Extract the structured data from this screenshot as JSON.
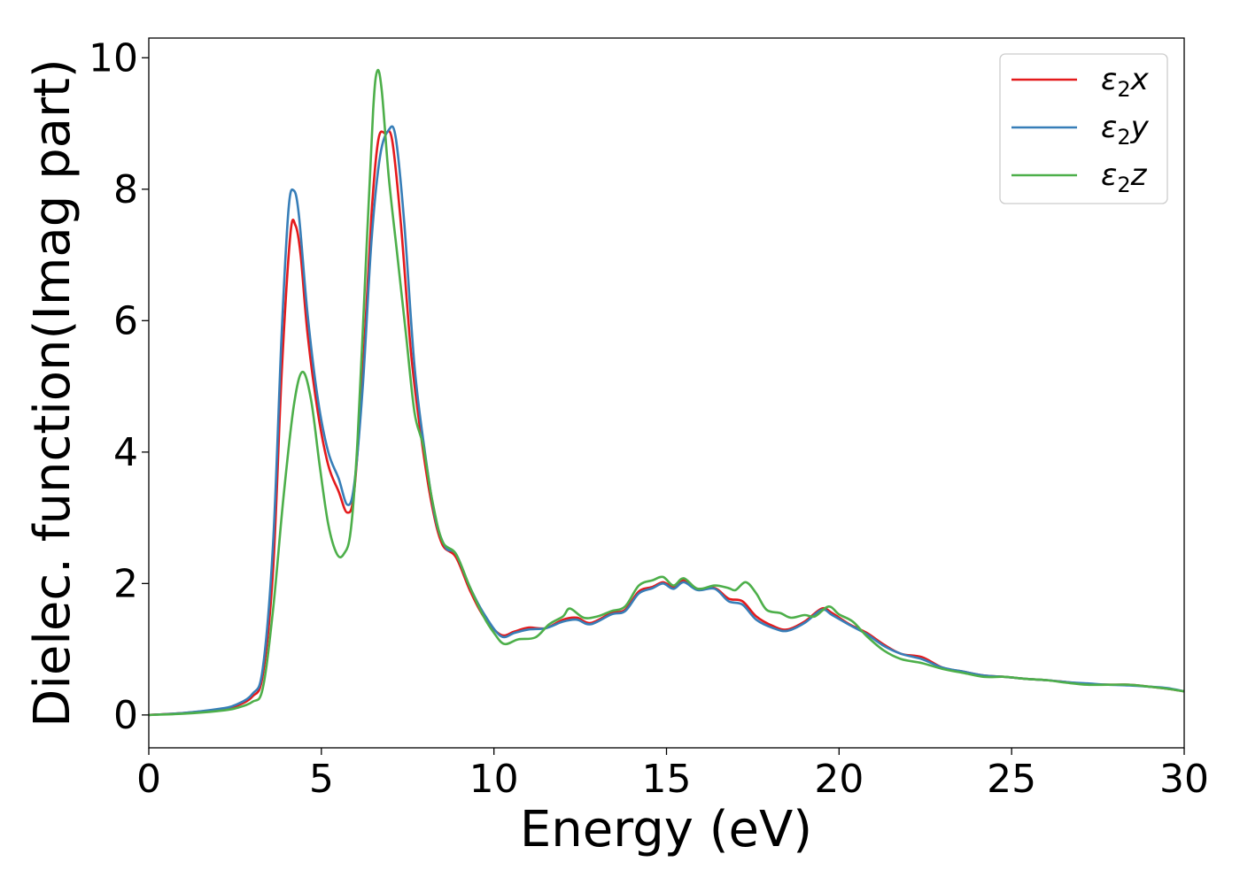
{
  "chart_data": {
    "type": "line",
    "title": "",
    "xlabel": "Energy (eV)",
    "ylabel": "Dielec. function(Imag part)",
    "xlim": [
      0,
      30
    ],
    "ylim": [
      -0.5,
      10.3
    ],
    "grid": false,
    "legend_position": "top-right",
    "x_ticks": [
      0,
      5,
      10,
      15,
      20,
      25,
      30
    ],
    "x_tick_labels": [
      "0",
      "5",
      "10",
      "15",
      "20",
      "25",
      "30"
    ],
    "y_ticks": [
      0,
      2,
      4,
      6,
      8,
      10
    ],
    "y_tick_labels": [
      "0",
      "2",
      "4",
      "6",
      "8",
      "10"
    ],
    "series": [
      {
        "name": "ε2x",
        "legend_base": "ε",
        "legend_sub": "2",
        "legend_suffix": "x",
        "color": "#e41a1c",
        "points": [
          [
            0,
            0.0
          ],
          [
            1,
            0.03
          ],
          [
            2,
            0.08
          ],
          [
            2.5,
            0.13
          ],
          [
            3,
            0.28
          ],
          [
            3.3,
            0.6
          ],
          [
            3.6,
            2.2
          ],
          [
            3.85,
            5.2
          ],
          [
            4.1,
            7.3
          ],
          [
            4.25,
            7.45
          ],
          [
            4.4,
            7.0
          ],
          [
            4.6,
            5.8
          ],
          [
            4.9,
            4.6
          ],
          [
            5.2,
            3.8
          ],
          [
            5.5,
            3.4
          ],
          [
            5.75,
            3.08
          ],
          [
            5.95,
            3.4
          ],
          [
            6.2,
            5.2
          ],
          [
            6.45,
            7.6
          ],
          [
            6.65,
            8.75
          ],
          [
            6.85,
            8.85
          ],
          [
            7.05,
            8.75
          ],
          [
            7.3,
            7.5
          ],
          [
            7.6,
            5.5
          ],
          [
            7.9,
            4.2
          ],
          [
            8.2,
            3.2
          ],
          [
            8.5,
            2.6
          ],
          [
            8.9,
            2.4
          ],
          [
            9.3,
            1.9
          ],
          [
            9.7,
            1.5
          ],
          [
            10.2,
            1.22
          ],
          [
            10.6,
            1.27
          ],
          [
            11,
            1.33
          ],
          [
            11.5,
            1.32
          ],
          [
            12,
            1.45
          ],
          [
            12.4,
            1.48
          ],
          [
            12.8,
            1.4
          ],
          [
            13.4,
            1.55
          ],
          [
            13.8,
            1.6
          ],
          [
            14.2,
            1.88
          ],
          [
            14.6,
            1.95
          ],
          [
            14.9,
            2.02
          ],
          [
            15.2,
            1.95
          ],
          [
            15.5,
            2.05
          ],
          [
            15.9,
            1.92
          ],
          [
            16.4,
            1.93
          ],
          [
            16.8,
            1.77
          ],
          [
            17.2,
            1.73
          ],
          [
            17.6,
            1.5
          ],
          [
            18.1,
            1.35
          ],
          [
            18.5,
            1.3
          ],
          [
            19,
            1.42
          ],
          [
            19.5,
            1.62
          ],
          [
            19.8,
            1.55
          ],
          [
            20.3,
            1.38
          ],
          [
            20.8,
            1.25
          ],
          [
            21.3,
            1.07
          ],
          [
            21.8,
            0.93
          ],
          [
            22.4,
            0.88
          ],
          [
            23,
            0.72
          ],
          [
            23.6,
            0.66
          ],
          [
            24.2,
            0.6
          ],
          [
            24.8,
            0.58
          ],
          [
            25.4,
            0.55
          ],
          [
            26,
            0.53
          ],
          [
            26.6,
            0.5
          ],
          [
            27.2,
            0.47
          ],
          [
            27.8,
            0.46
          ],
          [
            28.4,
            0.46
          ],
          [
            29,
            0.43
          ],
          [
            29.5,
            0.4
          ],
          [
            30,
            0.36
          ]
        ]
      },
      {
        "name": "ε2y",
        "legend_base": "ε",
        "legend_sub": "2",
        "legend_suffix": "y",
        "color": "#377eb8",
        "points": [
          [
            0,
            0.0
          ],
          [
            1,
            0.03
          ],
          [
            2,
            0.09
          ],
          [
            2.5,
            0.15
          ],
          [
            3,
            0.32
          ],
          [
            3.3,
            0.7
          ],
          [
            3.6,
            2.6
          ],
          [
            3.85,
            5.8
          ],
          [
            4.05,
            7.7
          ],
          [
            4.2,
            7.98
          ],
          [
            4.35,
            7.6
          ],
          [
            4.6,
            6.1
          ],
          [
            4.9,
            4.8
          ],
          [
            5.2,
            4.0
          ],
          [
            5.5,
            3.6
          ],
          [
            5.75,
            3.2
          ],
          [
            5.95,
            3.5
          ],
          [
            6.2,
            5.0
          ],
          [
            6.45,
            7.2
          ],
          [
            6.7,
            8.5
          ],
          [
            6.95,
            8.9
          ],
          [
            7.15,
            8.8
          ],
          [
            7.4,
            7.5
          ],
          [
            7.7,
            5.3
          ],
          [
            8.0,
            4.0
          ],
          [
            8.3,
            3.0
          ],
          [
            8.6,
            2.55
          ],
          [
            8.9,
            2.45
          ],
          [
            9.3,
            1.95
          ],
          [
            9.7,
            1.55
          ],
          [
            10.2,
            1.2
          ],
          [
            10.6,
            1.25
          ],
          [
            11,
            1.3
          ],
          [
            11.5,
            1.32
          ],
          [
            12,
            1.42
          ],
          [
            12.4,
            1.45
          ],
          [
            12.8,
            1.38
          ],
          [
            13.4,
            1.53
          ],
          [
            13.8,
            1.58
          ],
          [
            14.2,
            1.85
          ],
          [
            14.6,
            1.93
          ],
          [
            14.9,
            2.0
          ],
          [
            15.2,
            1.92
          ],
          [
            15.5,
            2.02
          ],
          [
            15.9,
            1.9
          ],
          [
            16.4,
            1.92
          ],
          [
            16.8,
            1.73
          ],
          [
            17.2,
            1.68
          ],
          [
            17.6,
            1.45
          ],
          [
            18.1,
            1.32
          ],
          [
            18.5,
            1.28
          ],
          [
            19,
            1.4
          ],
          [
            19.5,
            1.6
          ],
          [
            19.8,
            1.52
          ],
          [
            20.3,
            1.37
          ],
          [
            20.8,
            1.23
          ],
          [
            21.3,
            1.05
          ],
          [
            21.8,
            0.93
          ],
          [
            22.4,
            0.85
          ],
          [
            23,
            0.72
          ],
          [
            23.6,
            0.66
          ],
          [
            24.2,
            0.6
          ],
          [
            24.8,
            0.58
          ],
          [
            25.4,
            0.55
          ],
          [
            26,
            0.53
          ],
          [
            26.6,
            0.5
          ],
          [
            27.2,
            0.48
          ],
          [
            27.8,
            0.46
          ],
          [
            28.4,
            0.45
          ],
          [
            29,
            0.43
          ],
          [
            29.5,
            0.41
          ],
          [
            30,
            0.36
          ]
        ]
      },
      {
        "name": "ε2z",
        "legend_base": "ε",
        "legend_sub": "2",
        "legend_suffix": "z",
        "color": "#4daf4a",
        "points": [
          [
            0,
            0.0
          ],
          [
            1,
            0.02
          ],
          [
            2,
            0.06
          ],
          [
            2.5,
            0.1
          ],
          [
            3,
            0.2
          ],
          [
            3.3,
            0.4
          ],
          [
            3.6,
            1.6
          ],
          [
            3.9,
            3.3
          ],
          [
            4.2,
            4.7
          ],
          [
            4.45,
            5.22
          ],
          [
            4.7,
            4.8
          ],
          [
            4.95,
            3.8
          ],
          [
            5.2,
            2.9
          ],
          [
            5.45,
            2.45
          ],
          [
            5.65,
            2.45
          ],
          [
            5.85,
            2.8
          ],
          [
            6.05,
            4.2
          ],
          [
            6.3,
            7.0
          ],
          [
            6.5,
            9.2
          ],
          [
            6.62,
            9.8
          ],
          [
            6.75,
            9.5
          ],
          [
            6.95,
            8.2
          ],
          [
            7.2,
            7.0
          ],
          [
            7.45,
            5.8
          ],
          [
            7.7,
            4.6
          ],
          [
            7.95,
            4.1
          ],
          [
            8.2,
            3.3
          ],
          [
            8.5,
            2.65
          ],
          [
            8.9,
            2.45
          ],
          [
            9.3,
            1.95
          ],
          [
            9.7,
            1.5
          ],
          [
            10.0,
            1.25
          ],
          [
            10.3,
            1.08
          ],
          [
            10.7,
            1.15
          ],
          [
            11.2,
            1.18
          ],
          [
            11.6,
            1.38
          ],
          [
            12.0,
            1.5
          ],
          [
            12.2,
            1.62
          ],
          [
            12.6,
            1.48
          ],
          [
            13.0,
            1.5
          ],
          [
            13.4,
            1.58
          ],
          [
            13.8,
            1.65
          ],
          [
            14.2,
            1.97
          ],
          [
            14.6,
            2.05
          ],
          [
            14.9,
            2.1
          ],
          [
            15.2,
            1.97
          ],
          [
            15.5,
            2.08
          ],
          [
            15.9,
            1.92
          ],
          [
            16.4,
            1.97
          ],
          [
            16.8,
            1.93
          ],
          [
            17.0,
            1.9
          ],
          [
            17.3,
            2.02
          ],
          [
            17.6,
            1.85
          ],
          [
            17.9,
            1.6
          ],
          [
            18.3,
            1.55
          ],
          [
            18.6,
            1.48
          ],
          [
            19.0,
            1.52
          ],
          [
            19.3,
            1.5
          ],
          [
            19.7,
            1.65
          ],
          [
            20.0,
            1.53
          ],
          [
            20.4,
            1.42
          ],
          [
            20.8,
            1.2
          ],
          [
            21.3,
            0.98
          ],
          [
            21.8,
            0.85
          ],
          [
            22.4,
            0.79
          ],
          [
            23,
            0.7
          ],
          [
            23.6,
            0.64
          ],
          [
            24.2,
            0.58
          ],
          [
            24.8,
            0.58
          ],
          [
            25.4,
            0.55
          ],
          [
            26,
            0.53
          ],
          [
            26.6,
            0.49
          ],
          [
            27.2,
            0.46
          ],
          [
            27.8,
            0.46
          ],
          [
            28.4,
            0.46
          ],
          [
            29,
            0.43
          ],
          [
            29.5,
            0.4
          ],
          [
            30,
            0.36
          ]
        ]
      }
    ]
  }
}
